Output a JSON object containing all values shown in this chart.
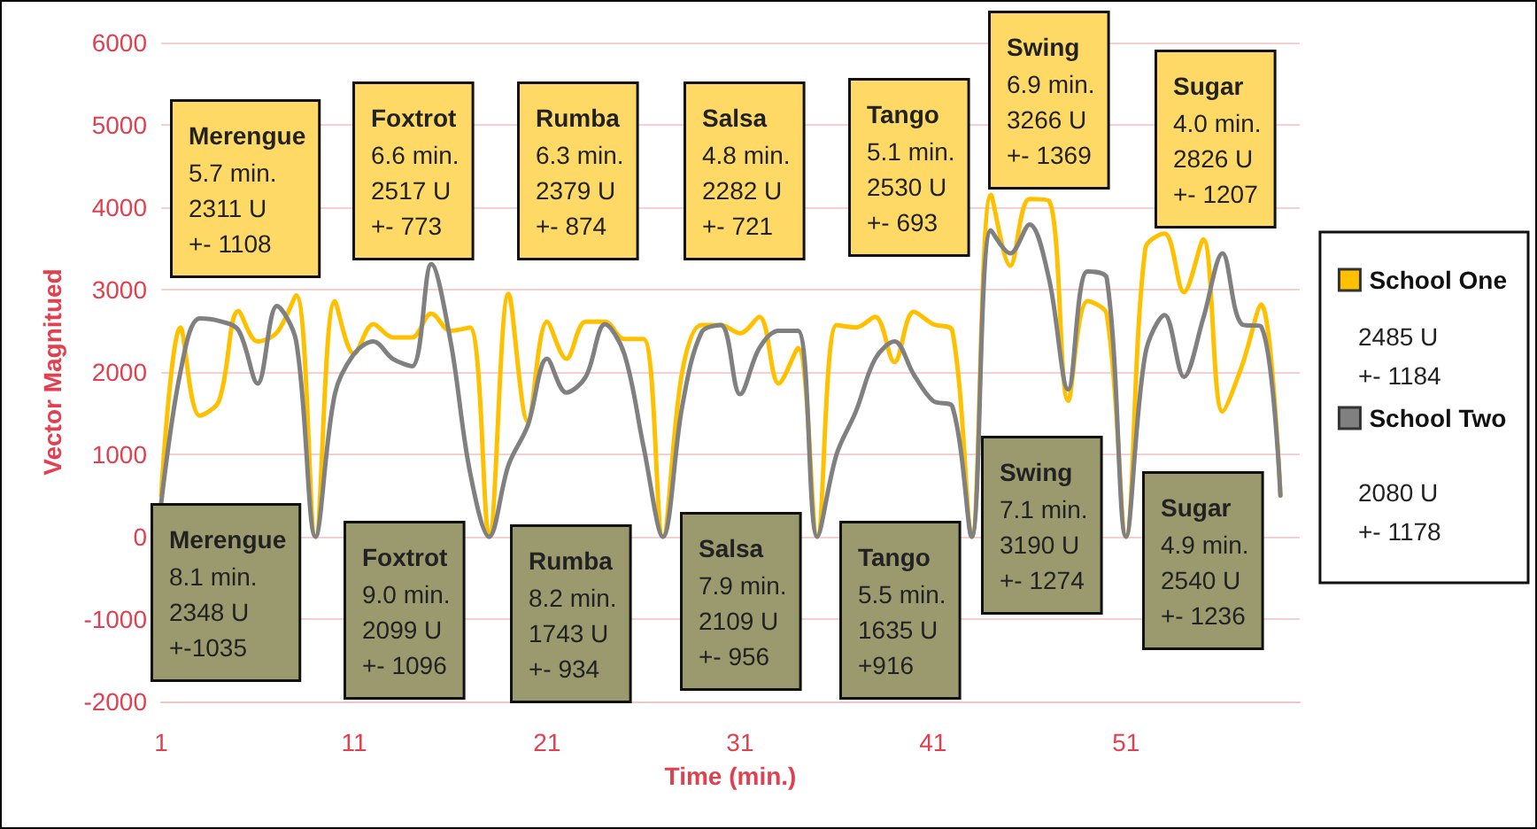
{
  "chart_data": {
    "type": "line",
    "xlabel": "Time (min.)",
    "ylabel": "Vector Magnitued",
    "x": [
      1,
      2,
      3,
      4,
      5,
      6,
      7,
      8,
      9,
      10,
      11,
      12,
      13,
      14,
      15,
      16,
      17,
      18,
      19,
      20,
      21,
      22,
      23,
      24,
      25,
      26,
      27,
      28,
      29,
      30,
      31,
      32,
      33,
      34,
      35,
      36,
      37,
      38,
      39,
      40,
      41,
      42,
      43,
      44,
      45,
      46,
      47,
      48,
      49,
      50,
      51,
      52,
      53,
      54,
      55,
      56,
      57,
      58,
      59
    ],
    "series": [
      {
        "name": "School One",
        "color": "#ffc000",
        "values": [
          500,
          2540,
          1470,
          1650,
          2740,
          2370,
          2480,
          2930,
          0,
          2860,
          2220,
          2580,
          2420,
          2420,
          2710,
          2500,
          2540,
          0,
          2950,
          1400,
          2610,
          2160,
          2610,
          2610,
          2400,
          2400,
          0,
          2000,
          2570,
          2570,
          2470,
          2670,
          1860,
          2290,
          0,
          2570,
          2540,
          2670,
          2120,
          2730,
          2580,
          2500,
          0,
          4150,
          3290,
          4100,
          4080,
          1650,
          2860,
          2700,
          0,
          3500,
          3680,
          2970,
          3610,
          1520,
          2070,
          2820,
          500
        ]
      },
      {
        "name": "School Two",
        "color": "#808080",
        "values": [
          400,
          2000,
          2650,
          2620,
          2510,
          1860,
          2800,
          2370,
          0,
          1730,
          2220,
          2370,
          2160,
          2070,
          3310,
          2370,
          790,
          0,
          870,
          1350,
          2160,
          1750,
          1940,
          2580,
          2220,
          1090,
          0,
          1580,
          2480,
          2570,
          1730,
          2290,
          2500,
          2500,
          0,
          1000,
          1520,
          2160,
          2370,
          1970,
          1650,
          1580,
          0,
          3720,
          3440,
          3790,
          3140,
          1790,
          3220,
          3140,
          0,
          2220,
          2690,
          1940,
          2650,
          3440,
          2580,
          2550,
          500
        ]
      }
    ],
    "xlim": [
      1,
      60
    ],
    "xticks": [
      1,
      11,
      21,
      31,
      41,
      51
    ],
    "ylim": [
      -2000,
      6000
    ],
    "yticks": [
      -2000,
      -1000,
      0,
      1000,
      2000,
      3000,
      4000,
      5000,
      6000
    ],
    "grid": "y",
    "legend": "right",
    "marker": "none",
    "line_style": "solid",
    "annotations": [
      "Merengue\n5.7 min.\n2311 U\n+- 1108",
      "Foxtrot\n6.6 min.\n2517 U\n+- 773",
      "Rumba\n6.3 min.\n2379 U\n+- 874",
      "Salsa\n4.8 min.\n2282 U\n+- 721",
      "Tango\n5.1 min.\n2530 U\n+- 693",
      "Swing\n6.9 min.\n3266 U\n+- 1369",
      "Sugar\n4.0 min.\n2826 U\n+- 1207",
      "Merengue\n8.1 min.\n2348 U\n+-1035",
      "Foxtrot\n9.0 min.\n2099 U\n+- 1096",
      "Rumba\n8.2 min.\n1743 U\n+- 934",
      "Salsa\n7.9 min.\n2109 U\n+- 956",
      "Tango\n5.5 min.\n1635 U\n+916",
      "Swing\n7.1 min.\n3190 U\n+- 1274",
      "Sugar\n4.9 min.\n2540 U\n+- 1236",
      "2485 U\n+- 1184",
      "2080 U\n+- 1178"
    ]
  }
}
